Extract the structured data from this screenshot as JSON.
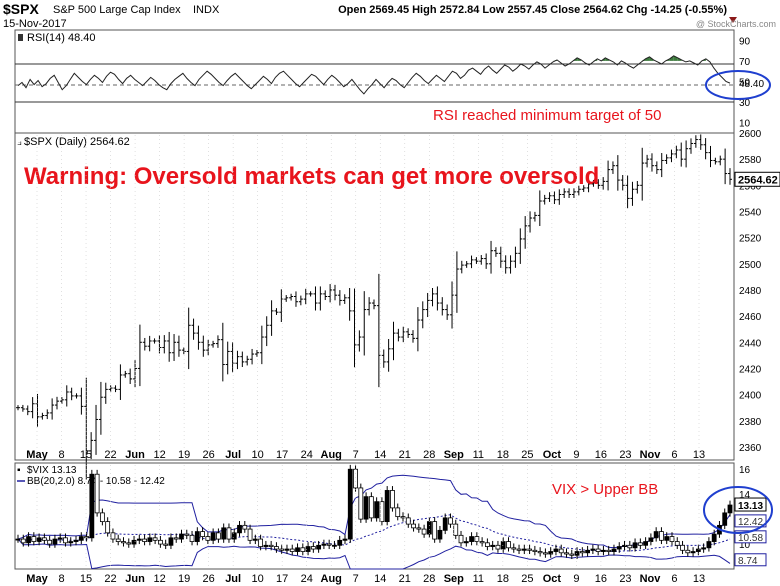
{
  "header": {
    "symbol": "$SPX",
    "name": "S&P 500 Large Cap Index",
    "exchange": "INDX",
    "date": "15-Nov-2017",
    "ohlc": "Open 2569.45 High 2572.84 Low 2557.45 Close 2564.62 Chg -14.25 (-0.55%)",
    "watermark": "@ StockCharts.com"
  },
  "annotations": {
    "warning": "Warning: Oversold markets can get more oversold",
    "rsi_note": "RSI reached minimum target of 50",
    "vix_note": "VIX > Upper BB"
  },
  "colors": {
    "annotation": "#e8141c",
    "circle": "#1f3fcf",
    "rsi_fill": "#3d7a3d",
    "bb": "#2020a0"
  },
  "chart_data": [
    {
      "type": "line",
      "panel": "RSI",
      "legend": "RSI(14) 48.40",
      "ylim": [
        0,
        100
      ],
      "yticks": [
        10,
        30,
        50,
        70,
        90
      ],
      "last_value_label": "48.40",
      "values": [
        46,
        49,
        44,
        52,
        47,
        51,
        45,
        48,
        53,
        56,
        49,
        42,
        46,
        52,
        58,
        54,
        50,
        47,
        52,
        56,
        53,
        49,
        55,
        59,
        57,
        52,
        48,
        53,
        56,
        52,
        49,
        46,
        50,
        54,
        51,
        47,
        44,
        42,
        48,
        52,
        55,
        58,
        53,
        49,
        46,
        52,
        56,
        60,
        57,
        53,
        49,
        46,
        51,
        55,
        58,
        54,
        50,
        46,
        43,
        47,
        51,
        55,
        52,
        48,
        54,
        58,
        60,
        56,
        52,
        48,
        45,
        49,
        53,
        57,
        55,
        51,
        47,
        52,
        56,
        53,
        49,
        45,
        48,
        52,
        47,
        42,
        38,
        43,
        47,
        52,
        48,
        44,
        49,
        53,
        51,
        47,
        44,
        49,
        54,
        58,
        55,
        51,
        48,
        52,
        56,
        53,
        50,
        55,
        60,
        58,
        53,
        56,
        61,
        63,
        60,
        57,
        62,
        65,
        61,
        58,
        62,
        66,
        64,
        60,
        63,
        67,
        65,
        62,
        66,
        69,
        67,
        63,
        66,
        69,
        71,
        68,
        65,
        67,
        70,
        73,
        71,
        68,
        66,
        69,
        72,
        70,
        73,
        71,
        69,
        66,
        70,
        68,
        65,
        63,
        66,
        69,
        72,
        74,
        71,
        69,
        67,
        70,
        72,
        75,
        73,
        71,
        69,
        70,
        68,
        66,
        70,
        72,
        69,
        63,
        58,
        54,
        50,
        48.4
      ]
    },
    {
      "type": "ohlc",
      "panel": "SPX",
      "legend": "$SPX (Daily) 2564.62",
      "ylim": [
        2350,
        2600
      ],
      "yticks": [
        2360,
        2380,
        2400,
        2420,
        2440,
        2460,
        2480,
        2500,
        2520,
        2540,
        2560,
        2580,
        2600
      ],
      "last_value_label": "2564.62",
      "xticks": [
        "May",
        "8",
        "15",
        "22",
        "Jun",
        "12",
        "19",
        "26",
        "Jul",
        "10",
        "17",
        "24",
        "Aug",
        "7",
        "14",
        "21",
        "28",
        "Sep",
        "11",
        "18",
        "25",
        "Oct",
        "9",
        "16",
        "23",
        "Nov",
        "6",
        "13"
      ],
      "closes": [
        2390,
        2389,
        2387,
        2393,
        2383,
        2384,
        2386,
        2392,
        2395,
        2396,
        2402,
        2399,
        2399,
        2391,
        2357,
        2365,
        2381,
        2398,
        2404,
        2405,
        2404,
        2415,
        2416,
        2412,
        2420,
        2440,
        2437,
        2441,
        2441,
        2436,
        2441,
        2432,
        2440,
        2434,
        2433,
        2453,
        2447,
        2440,
        2434,
        2438,
        2439,
        2442,
        2423,
        2433,
        2424,
        2429,
        2425,
        2427,
        2431,
        2432,
        2444,
        2453,
        2464,
        2463,
        2473,
        2474,
        2475,
        2471,
        2473,
        2477,
        2477,
        2470,
        2477,
        2475,
        2480,
        2476,
        2472,
        2474,
        2464,
        2438,
        2444,
        2465,
        2470,
        2468,
        2430,
        2425,
        2435,
        2447,
        2444,
        2448,
        2446,
        2443,
        2457,
        2465,
        2472,
        2477,
        2470,
        2465,
        2461,
        2476,
        2496,
        2499,
        2500,
        2503,
        2502,
        2504,
        2500,
        2510,
        2508,
        2502,
        2497,
        2502,
        2508,
        2519,
        2529,
        2535,
        2537,
        2548,
        2550,
        2552,
        2549,
        2553,
        2555,
        2553,
        2555,
        2557,
        2558,
        2561,
        2562,
        2560,
        2563,
        2572,
        2575,
        2564,
        2560,
        2550,
        2557,
        2560,
        2577,
        2580,
        2575,
        2572,
        2579,
        2581,
        2584,
        2587,
        2580,
        2588,
        2592,
        2595,
        2591,
        2585,
        2579,
        2578,
        2580,
        2569,
        2564.6
      ]
    },
    {
      "type": "ohlc",
      "panel": "VIX",
      "legend_main": "$VIX 13.13",
      "legend_bb": "BB(20,2.0) 8.74 - 10.58 - 12.42",
      "ylim": [
        8,
        16.5
      ],
      "yticks": [
        10,
        12,
        14,
        16
      ],
      "last_value_label": "13.13",
      "band_labels": [
        "12.42",
        "10.58",
        "8.74"
      ],
      "xticks": [
        "May",
        "8",
        "15",
        "22",
        "Jun",
        "12",
        "19",
        "26",
        "Jul",
        "10",
        "17",
        "24",
        "Aug",
        "7",
        "14",
        "21",
        "28",
        "Sep",
        "11",
        "18",
        "25",
        "Oct",
        "9",
        "16",
        "23",
        "Nov",
        "6",
        "13"
      ],
      "closes": [
        10.4,
        10.1,
        10.6,
        10.2,
        10.5,
        10.3,
        10.0,
        10.4,
        10.5,
        10.1,
        10.2,
        10.3,
        10.6,
        10.5,
        15.6,
        12.5,
        11.8,
        10.9,
        10.4,
        10.2,
        10.1,
        10.0,
        10.3,
        10.4,
        10.2,
        10.5,
        10.3,
        10.0,
        9.9,
        10.5,
        10.4,
        10.8,
        10.7,
        10.2,
        11.0,
        10.6,
        10.3,
        10.9,
        10.4,
        11.3,
        10.4,
        10.9,
        11.5,
        11.2,
        10.3,
        10.4,
        9.8,
        9.9,
        9.8,
        9.6,
        9.5,
        9.6,
        9.4,
        9.7,
        9.4,
        9.8,
        9.6,
        9.9,
        10.0,
        9.9,
        9.9,
        10.3,
        10.4,
        16.0,
        14.5,
        12.0,
        13.8,
        12.1,
        13.4,
        11.8,
        14.3,
        12.9,
        12.2,
        12.1,
        11.6,
        11.3,
        11.2,
        10.8,
        11.8,
        10.4,
        11.1,
        12.1,
        11.6,
        10.7,
        10.1,
        10.2,
        10.6,
        10.2,
        10.1,
        9.8,
        9.9,
        9.6,
        10.2,
        9.7,
        9.6,
        9.5,
        9.6,
        9.5,
        9.4,
        9.3,
        9.2,
        9.4,
        9.6,
        9.3,
        9.2,
        9.1,
        9.4,
        9.3,
        9.5,
        9.6,
        9.4,
        9.5,
        9.4,
        9.6,
        9.8,
        9.9,
        9.7,
        10.1,
        9.9,
        10.2,
        10.5,
        11.0,
        10.3,
        10.6,
        10.2,
        9.9,
        9.5,
        9.3,
        9.4,
        9.6,
        9.7,
        10.2,
        10.8,
        11.5,
        12.5,
        13.13
      ]
    }
  ]
}
